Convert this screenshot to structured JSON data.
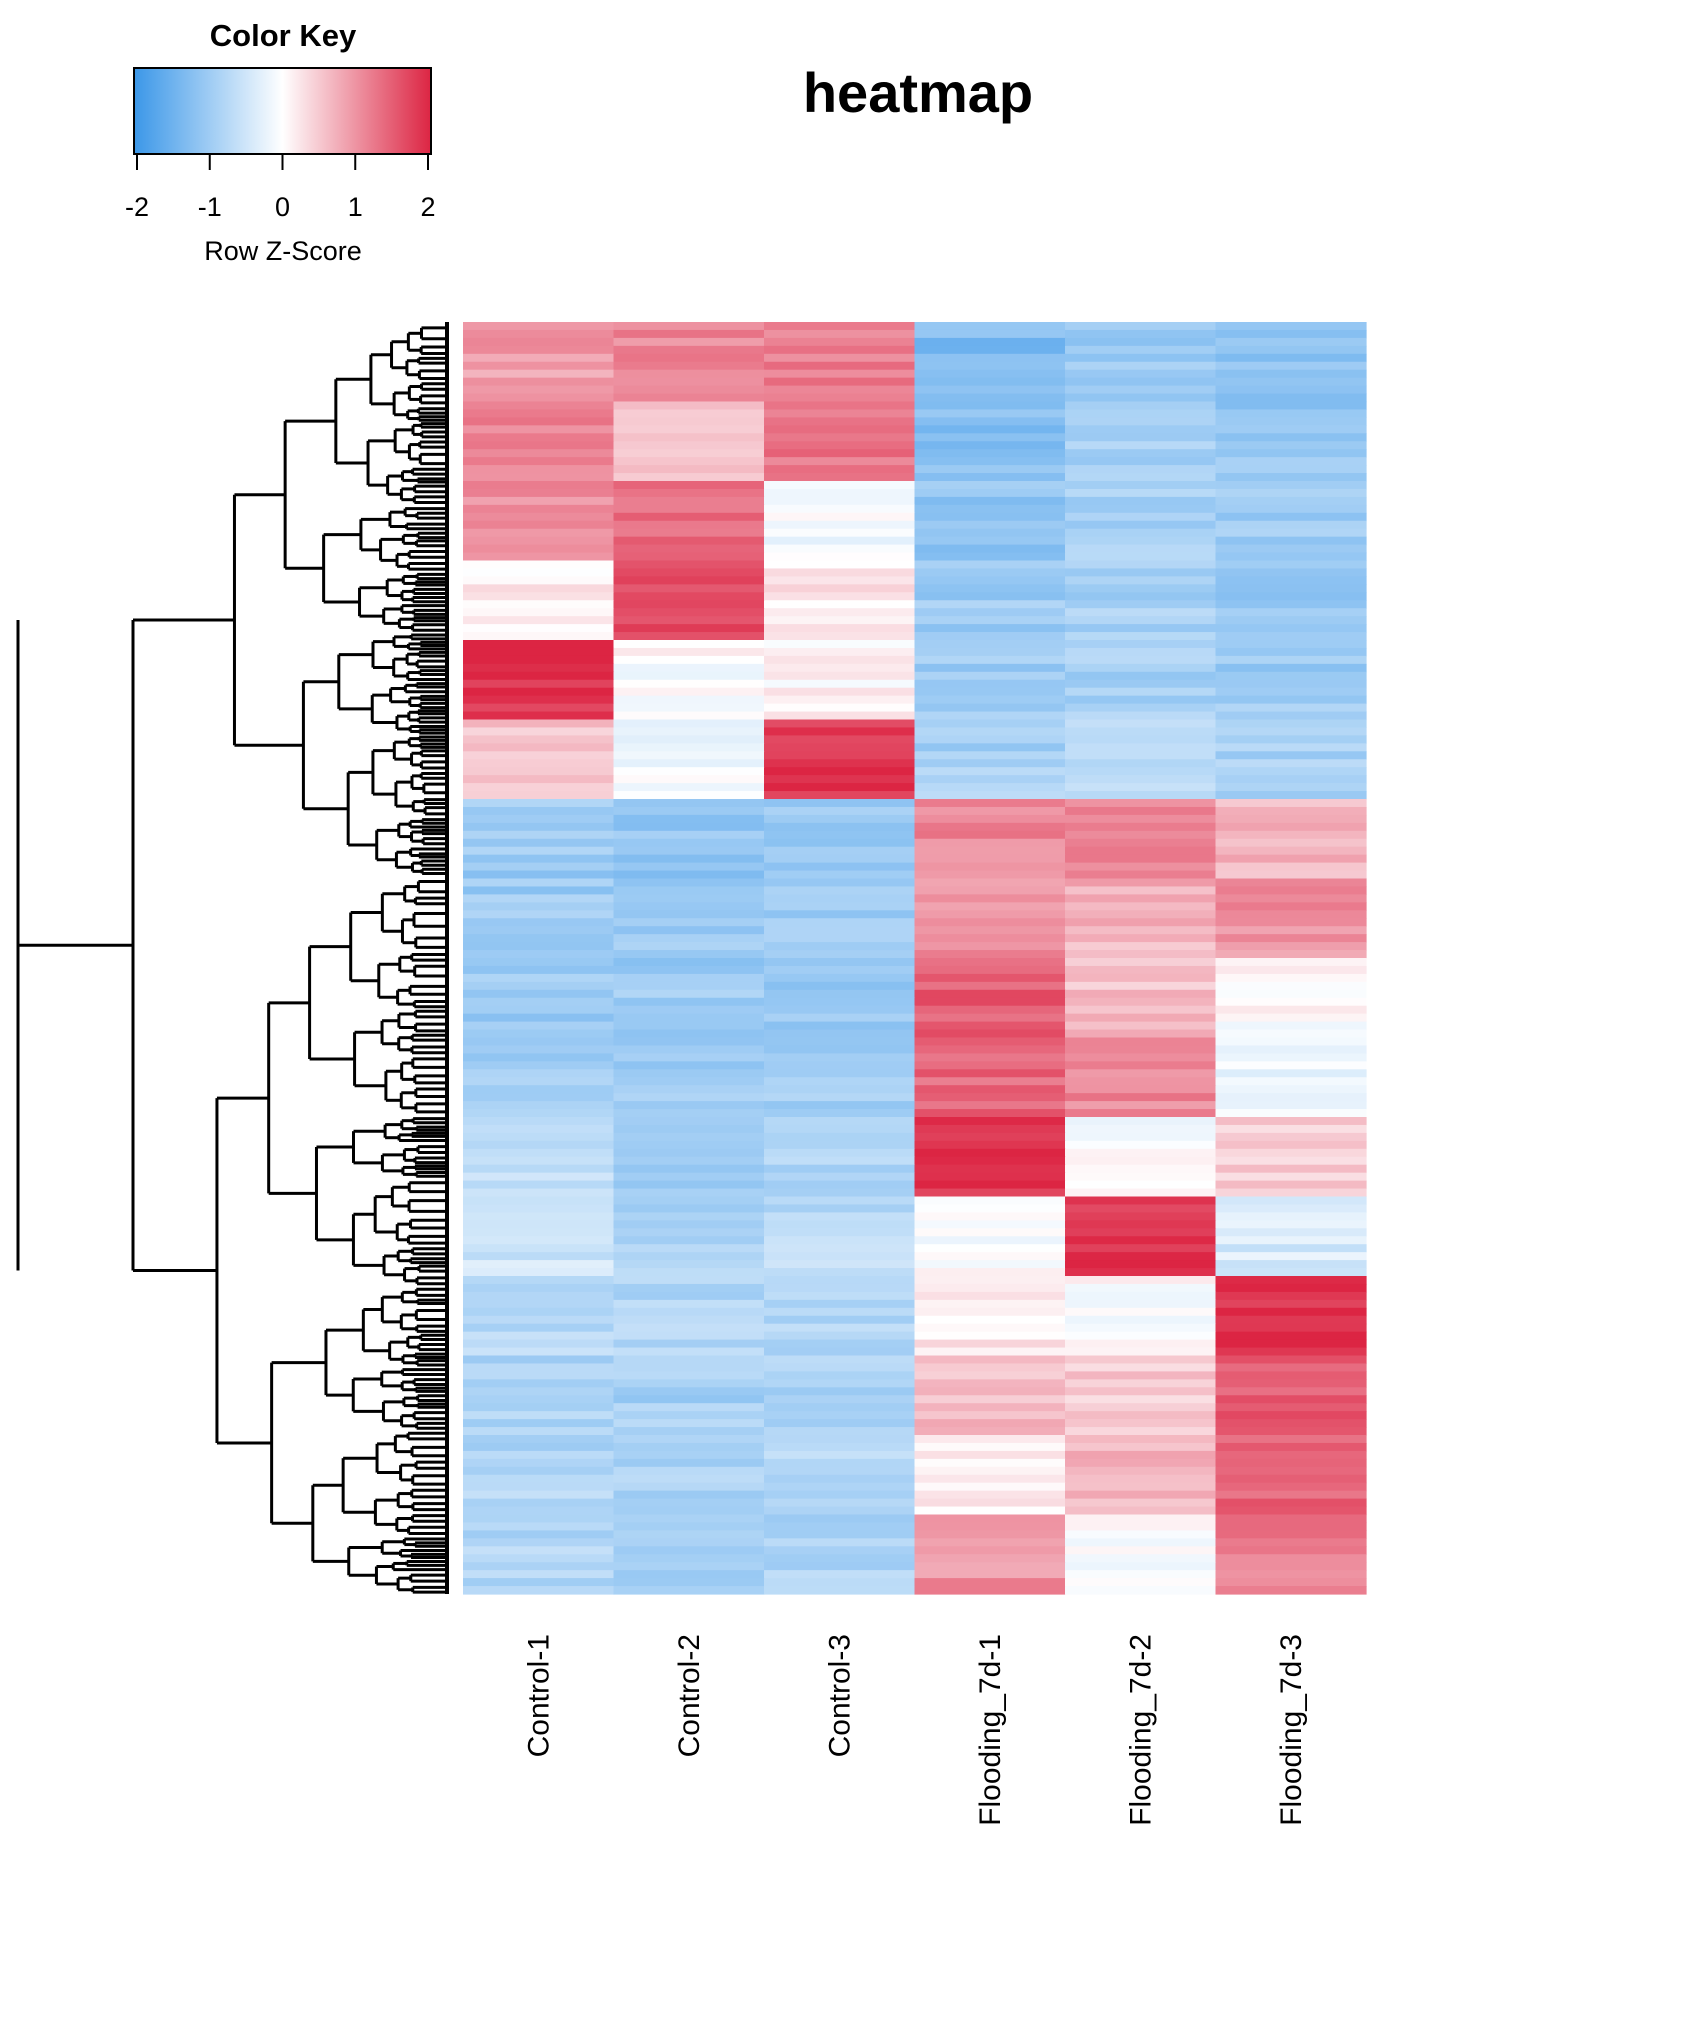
{
  "chart_data": {
    "type": "heatmap",
    "title": "heatmap",
    "columns": [
      "Control-1",
      "Control-2",
      "Control-3",
      "Flooding_7d-1",
      "Flooding_7d-2",
      "Flooding_7d-3"
    ],
    "row_dendrogram": true,
    "color_key": {
      "title": "Color Key",
      "xlabel": "Row Z-Score",
      "ticks": [
        "-2",
        "-1",
        "0",
        "1",
        "2"
      ],
      "range": [
        -2,
        2
      ],
      "low_color": "#3b97e8",
      "mid_color": "#ffffff",
      "high_color": "#dc2543"
    },
    "row_blocks": [
      {
        "z": [
          0.9,
          1.1,
          1.2,
          -1.3,
          -1.0,
          -1.1
        ]
      },
      {
        "z": [
          1.1,
          0.6,
          1.3,
          -1.2,
          -0.9,
          -1.1
        ]
      },
      {
        "z": [
          1.0,
          1.3,
          -0.1,
          -1.1,
          -0.9,
          -1.0
        ]
      },
      {
        "z": [
          0.2,
          1.7,
          0.2,
          -1.0,
          -0.9,
          -1.0
        ]
      },
      {
        "z": [
          1.9,
          0.0,
          0.1,
          -1.0,
          -0.9,
          -1.0
        ]
      },
      {
        "z": [
          0.6,
          -0.1,
          1.8,
          -0.9,
          -0.8,
          -0.9
        ]
      },
      {
        "z": [
          -1.0,
          -1.1,
          -1.0,
          1.1,
          1.2,
          0.7
        ]
      },
      {
        "z": [
          -1.0,
          -1.0,
          -1.0,
          1.0,
          0.7,
          1.0
        ]
      },
      {
        "z": [
          -1.0,
          -1.0,
          -1.0,
          1.5,
          0.6,
          0.0
        ]
      },
      {
        "z": [
          -0.9,
          -1.0,
          -0.9,
          1.4,
          1.1,
          -0.2
        ]
      },
      {
        "z": [
          -0.6,
          -0.9,
          -0.8,
          1.9,
          0.0,
          0.5
        ]
      },
      {
        "z": [
          -0.5,
          -0.8,
          -0.7,
          0.0,
          1.8,
          -0.4
        ]
      },
      {
        "z": [
          -0.7,
          -0.8,
          -0.8,
          0.2,
          0.0,
          1.9
        ]
      },
      {
        "z": [
          -0.8,
          -0.9,
          -0.8,
          0.6,
          0.5,
          1.5
        ]
      },
      {
        "z": [
          -0.8,
          -0.9,
          -0.8,
          0.1,
          0.7,
          1.4
        ]
      },
      {
        "z": [
          -0.8,
          -0.9,
          -0.8,
          1.0,
          0.0,
          1.2
        ]
      }
    ]
  }
}
